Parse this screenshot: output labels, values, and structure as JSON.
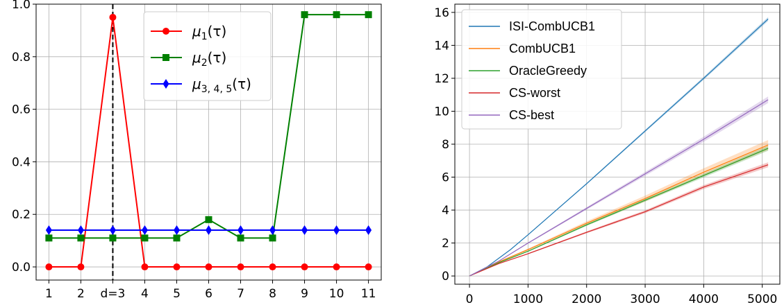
{
  "chart_data": [
    {
      "type": "line",
      "x_ticks": [
        "1",
        "2",
        "d=3",
        "4",
        "5",
        "6",
        "7",
        "8",
        "9",
        "10",
        "11"
      ],
      "x": [
        1,
        2,
        3,
        4,
        5,
        6,
        7,
        8,
        9,
        10,
        11
      ],
      "ylim": [
        -0.05,
        1.0
      ],
      "y_ticks": [
        "0.0",
        "0.2",
        "0.4",
        "0.6",
        "0.8",
        "1.0"
      ],
      "grid": true,
      "legend_position": "top-center",
      "vertical_line": {
        "x": 3,
        "style": "dashed",
        "color": "#000000"
      },
      "series": [
        {
          "name_main": "μ",
          "name_sub": "1",
          "name_arg": "(τ)",
          "color": "#ff0000",
          "marker": "circle",
          "values": [
            0.0,
            0.0,
            0.95,
            0.0,
            0.0,
            0.0,
            0.0,
            0.0,
            0.0,
            0.0,
            0.0
          ]
        },
        {
          "name_main": "μ",
          "name_sub": "2",
          "name_arg": "(τ)",
          "color": "#008000",
          "marker": "square",
          "values": [
            0.11,
            0.11,
            0.11,
            0.11,
            0.11,
            0.18,
            0.11,
            0.11,
            0.96,
            0.96,
            0.96
          ]
        },
        {
          "name_main": "μ",
          "name_sub": "3, 4, 5",
          "name_arg": "(τ)",
          "color": "#0000ff",
          "marker": "diamond",
          "values": [
            0.14,
            0.14,
            0.14,
            0.14,
            0.14,
            0.14,
            0.14,
            0.14,
            0.14,
            0.14,
            0.14
          ]
        }
      ]
    },
    {
      "type": "line",
      "xlim": [
        -250,
        5300
      ],
      "ylim": [
        -0.5,
        16.5
      ],
      "x_ticks": [
        0,
        1000,
        2000,
        3000,
        4000,
        5000
      ],
      "y_ticks": [
        0,
        2,
        4,
        6,
        8,
        10,
        12,
        14,
        16
      ],
      "grid": true,
      "legend_position": "top-left",
      "series": [
        {
          "name": "ISI-CombUCB1",
          "color": "#1f77b4",
          "band": 0.12,
          "points": [
            [
              0,
              0
            ],
            [
              300,
              0.55
            ],
            [
              700,
              1.6
            ],
            [
              1000,
              2.5
            ],
            [
              2000,
              5.6
            ],
            [
              3000,
              8.8
            ],
            [
              4000,
              12.0
            ],
            [
              5100,
              15.6
            ]
          ]
        },
        {
          "name": "CombUCB1",
          "color": "#ff7f0e",
          "band": 0.3,
          "points": [
            [
              0,
              0
            ],
            [
              500,
              0.85
            ],
            [
              1000,
              1.6
            ],
            [
              2000,
              3.2
            ],
            [
              3000,
              4.7
            ],
            [
              4000,
              6.3
            ],
            [
              5100,
              7.95
            ]
          ]
        },
        {
          "name": "OracleGreedy",
          "color": "#2ca02c",
          "band": 0.15,
          "points": [
            [
              0,
              0
            ],
            [
              500,
              0.8
            ],
            [
              1000,
              1.5
            ],
            [
              2000,
              3.1
            ],
            [
              3000,
              4.6
            ],
            [
              4000,
              6.1
            ],
            [
              5100,
              7.75
            ]
          ]
        },
        {
          "name": "CS-worst",
          "color": "#d62728",
          "band": 0.15,
          "points": [
            [
              0,
              0
            ],
            [
              500,
              0.75
            ],
            [
              1000,
              1.35
            ],
            [
              2000,
              2.65
            ],
            [
              3000,
              3.9
            ],
            [
              4000,
              5.4
            ],
            [
              5100,
              6.75
            ]
          ]
        },
        {
          "name": "CS-best",
          "color": "#9467bd",
          "band": 0.2,
          "points": [
            [
              0,
              0
            ],
            [
              500,
              0.9
            ],
            [
              1000,
              2.0
            ],
            [
              2000,
              4.1
            ],
            [
              3000,
              6.2
            ],
            [
              4000,
              8.3
            ],
            [
              5100,
              10.7
            ]
          ]
        }
      ]
    }
  ]
}
